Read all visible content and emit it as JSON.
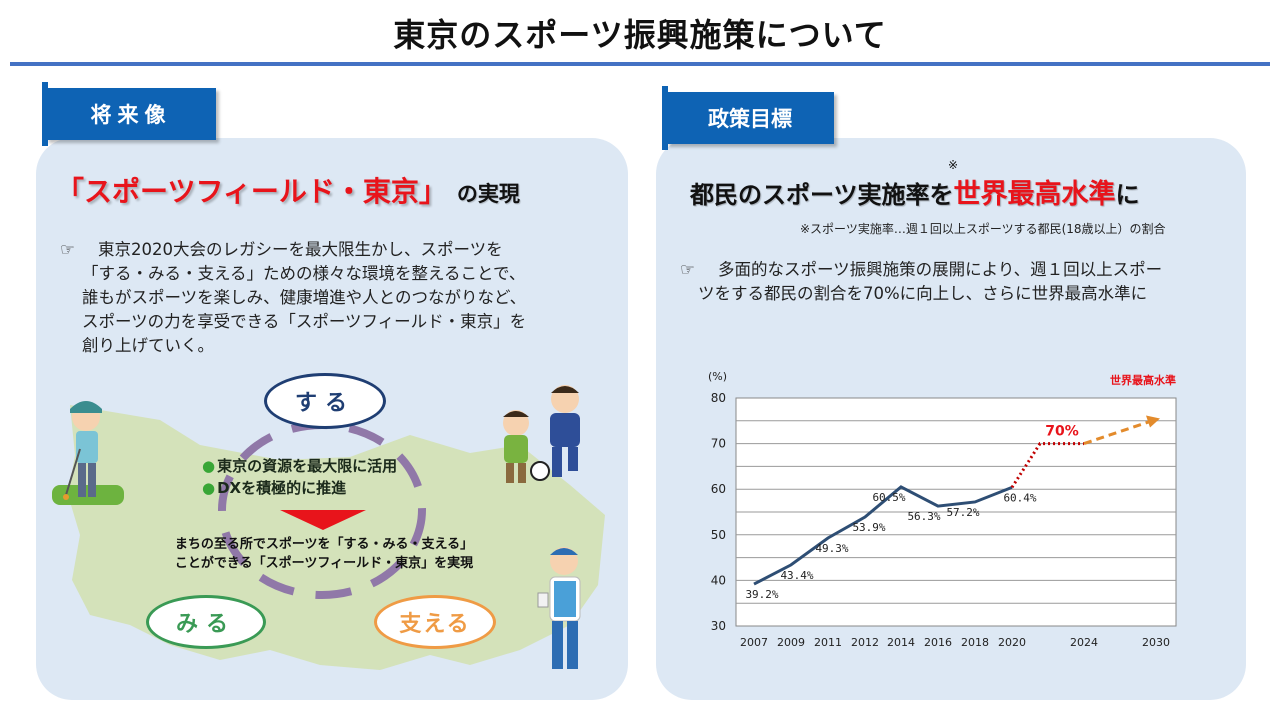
{
  "title": "東京のスポーツ振興施策について",
  "left": {
    "tab": "将来像",
    "heading_red": "「スポーツフィールド・東京」",
    "heading_black": "の実現",
    "bullet_lines": [
      "東京2020大会のレガシーを最大限生かし、スポーツを",
      "「する・みる・支える」ための様々な環境を整えることで、",
      "誰もがスポーツを楽しみ、健康増進や人とのつながりなど、",
      "スポーツの力を享受できる「スポーツフィールド・東京」を",
      "創り上げていく。"
    ],
    "illustration": {
      "suru": "する",
      "miru": "みる",
      "sasaeru": "支える",
      "points": [
        "東京の資源を最大限に活用",
        "DXを積極的に推進"
      ],
      "result_lines": [
        "まちの至る所でスポーツを「する・みる・支える」",
        "ことができる「スポーツフィールド・東京」を実現"
      ]
    }
  },
  "right": {
    "tab": "政策目標",
    "heading_part1": "都民のスポーツ実施率を",
    "heading_red": "世界最高水準",
    "heading_part2": "に",
    "asterisk": "※",
    "footnote": "※スポーツ実施率…週１回以上スポーツする都民(18歳以上）の割合",
    "bullet_lines": [
      "多面的なスポーツ振興施策の展開により、週１回以上スポー",
      "ツをする都民の割合を70%に向上し、さらに世界最高水準に"
    ]
  },
  "hand_icon": "☞",
  "chart_data": {
    "type": "line",
    "ylabel": "(%)",
    "ylim": [
      30,
      80
    ],
    "yticks": [
      30,
      40,
      50,
      60,
      70,
      80
    ],
    "grid": true,
    "x": [
      "2007",
      "2009",
      "2011",
      "2012",
      "2014",
      "2016",
      "2018",
      "2020",
      "2024",
      "2030"
    ],
    "series": [
      {
        "x": [
          "2007",
          "2009",
          "2011",
          "2012",
          "2014",
          "2016",
          "2018",
          "2020"
        ],
        "values": [
          39.2,
          43.4,
          49.3,
          53.9,
          60.5,
          56.3,
          57.2,
          60.4
        ],
        "labels": [
          "39.2%",
          "43.4%",
          "49.3%",
          "53.9%",
          "60.5%",
          "56.3%",
          "57.2%",
          "60.4%"
        ],
        "color": "#2e4e74"
      }
    ],
    "target": {
      "x": "2024",
      "value": 70,
      "label": "70%",
      "color": "#c00000"
    },
    "projection": {
      "to": "2030",
      "value": 75.5,
      "label": "世界最高水準",
      "color": "#e38b2c"
    }
  }
}
